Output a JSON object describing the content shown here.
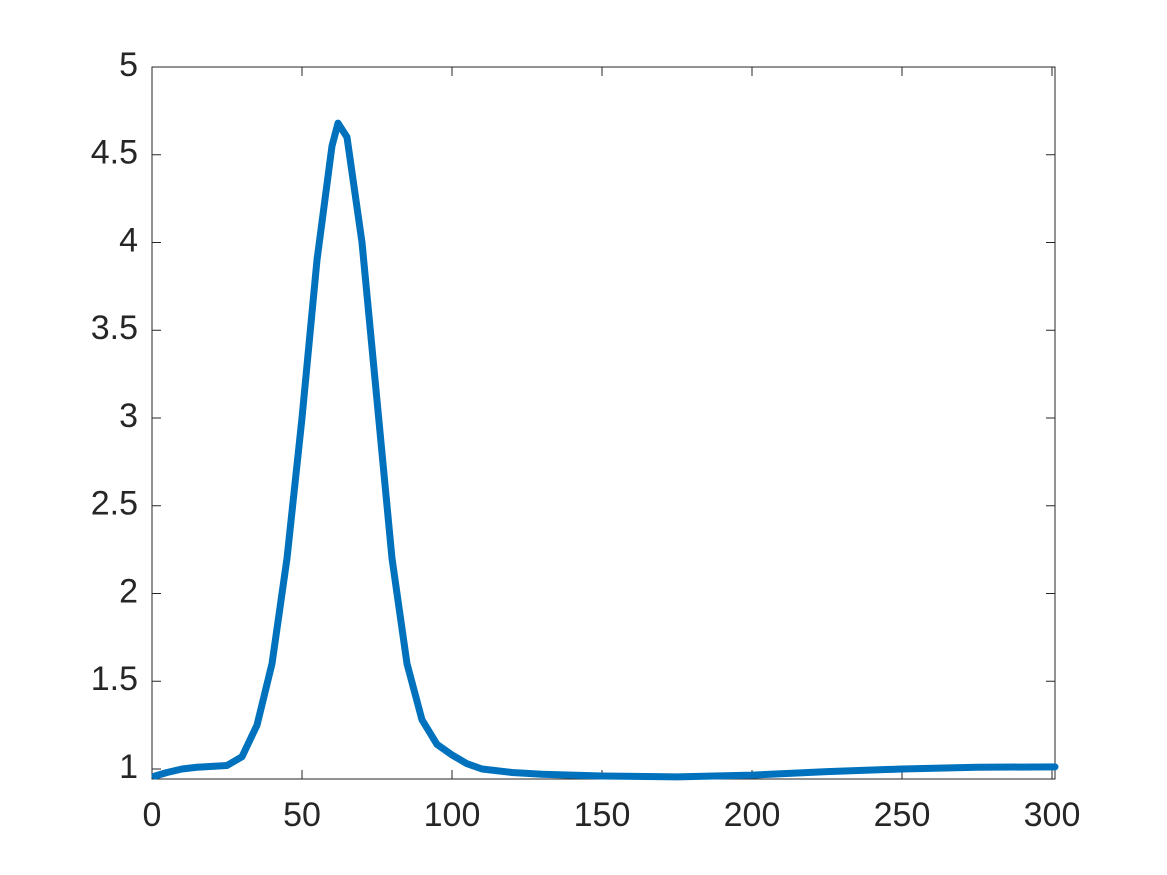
{
  "chart_data": {
    "type": "line",
    "x": [
      1,
      5,
      10,
      15,
      20,
      25,
      30,
      35,
      40,
      45,
      50,
      55,
      60,
      62,
      65,
      70,
      75,
      80,
      85,
      90,
      95,
      100,
      105,
      110,
      120,
      130,
      150,
      175,
      200,
      225,
      250,
      275,
      301
    ],
    "series": [
      {
        "color": "#0072bd",
        "values": [
          0.96,
          0.98,
          1.0,
          1.01,
          1.015,
          1.02,
          1.07,
          1.25,
          1.6,
          2.2,
          3.0,
          3.9,
          4.55,
          4.68,
          4.6,
          4.0,
          3.1,
          2.2,
          1.6,
          1.28,
          1.14,
          1.08,
          1.03,
          1.0,
          0.98,
          0.97,
          0.96,
          0.955,
          0.965,
          0.985,
          1.0,
          1.01,
          1.012
        ]
      }
    ],
    "xlim": [
      0,
      301
    ],
    "ylim": [
      0.943,
      5
    ],
    "xticks": [
      0,
      50,
      100,
      150,
      200,
      250,
      300
    ],
    "yticks": [
      1,
      1.5,
      2,
      2.5,
      3,
      3.5,
      4,
      4.5,
      5
    ],
    "grid": false
  }
}
